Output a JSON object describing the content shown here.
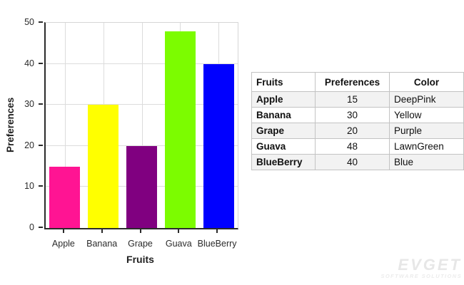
{
  "chart_data": {
    "type": "bar",
    "title": "",
    "xlabel": "Fruits",
    "ylabel": "Preferences",
    "categories": [
      "Apple",
      "Banana",
      "Grape",
      "Guava",
      "BlueBerry"
    ],
    "values": [
      15,
      30,
      20,
      48,
      40
    ],
    "bar_colors": [
      "#FF1493",
      "#FFFF00",
      "#800080",
      "#7CFC00",
      "#0000FF"
    ],
    "color_names": [
      "DeepPink",
      "Yellow",
      "Purple",
      "LawnGreen",
      "Blue"
    ],
    "ylim": [
      0,
      50
    ],
    "yticks": [
      0,
      10,
      20,
      30,
      40,
      50
    ],
    "grid": true,
    "legend": "none"
  },
  "table": {
    "headers": [
      "Fruits",
      "Preferences",
      "Color"
    ],
    "rows": [
      {
        "fruit": "Apple",
        "preference": "15",
        "color": "DeepPink"
      },
      {
        "fruit": "Banana",
        "preference": "30",
        "color": "Yellow"
      },
      {
        "fruit": "Grape",
        "preference": "20",
        "color": "Purple"
      },
      {
        "fruit": "Guava",
        "preference": "48",
        "color": "LawnGreen"
      },
      {
        "fruit": "BlueBerry",
        "preference": "40",
        "color": "Blue"
      }
    ]
  },
  "watermark": {
    "brand": "EVGET",
    "tagline": "SOFTWARE SOLUTIONS"
  },
  "colors": {
    "DeepPink": "#FF1493",
    "Yellow": "#FFFF00",
    "Purple": "#800080",
    "LawnGreen": "#7CFC00",
    "Blue": "#0000FF",
    "axis": "#2b2b2b",
    "gridline": "#dcdcdc",
    "zebra_row": "#f2f2f2",
    "watermark_gray": "#e7e7e7"
  }
}
